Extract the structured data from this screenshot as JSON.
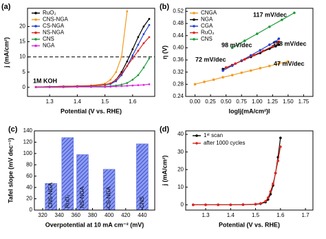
{
  "chart_data": [
    {
      "type": "line",
      "panel_label": "(a)",
      "x_label": "Potential (V vs. RHE)",
      "y_label": "j (mA/cm²)",
      "x": [
        1.25,
        1.3,
        1.35,
        1.4,
        1.45,
        1.5,
        1.52,
        1.54,
        1.56,
        1.58,
        1.6,
        1.62,
        1.64,
        1.66
      ],
      "series": [
        {
          "name": "RuO₂",
          "color": "#000000",
          "values": [
            0.1,
            0.2,
            0.3,
            0.4,
            0.5,
            0.8,
            1.2,
            2.5,
            5,
            8.5,
            12.5,
            16.5,
            20,
            22.5
          ]
        },
        {
          "name": "CNS-NGA",
          "color": "#f39a1e",
          "values": [
            0.1,
            0.2,
            0.3,
            0.4,
            0.6,
            1.2,
            2.5,
            5,
            10,
            25,
            null,
            null,
            null,
            null
          ]
        },
        {
          "name": "CS-NGA",
          "color": "#1f3fd6",
          "values": [
            0.1,
            0.2,
            0.3,
            0.4,
            0.5,
            0.8,
            1.1,
            2,
            4,
            7,
            10.5,
            14,
            17.5,
            20.5
          ]
        },
        {
          "name": "NS-NGA",
          "color": "#e0241b",
          "values": [
            0.1,
            0.2,
            0.3,
            0.4,
            0.5,
            0.9,
            1.3,
            2.5,
            4.5,
            7,
            9.5,
            12,
            14.5,
            16.5
          ]
        },
        {
          "name": "CNS",
          "color": "#1f9a3a",
          "values": [
            0,
            0.1,
            0.1,
            0.2,
            0.2,
            0.3,
            0.4,
            0.6,
            0.9,
            1.4,
            2.5,
            4,
            6.5,
            9.5
          ]
        },
        {
          "name": "NGA",
          "color": "#e020e0",
          "values": [
            0,
            0,
            0,
            0.1,
            0.1,
            0.1,
            0.2,
            0.3,
            0.4,
            0.5,
            0.6,
            0.7,
            0.8,
            1
          ]
        }
      ],
      "reference_line": 10,
      "annotations": [
        {
          "text": "1M KOH"
        }
      ],
      "xlim": [
        1.22,
        1.68
      ],
      "xticks": [
        1.3,
        1.4,
        1.5,
        1.6
      ],
      "ylim": [
        -3,
        26
      ],
      "yticks": [
        0,
        5,
        10,
        15,
        20
      ]
    },
    {
      "type": "line",
      "markers": true,
      "panel_label": "(b)",
      "x_label": "logIj(mA/cm²)I",
      "y_label": "η (V)",
      "series": [
        {
          "name": "CNGA",
          "color": "#f39a1e",
          "x": [
            0,
            0.15,
            0.3,
            0.45,
            0.6,
            0.75,
            0.9,
            1.05,
            1.2,
            1.35,
            1.5
          ],
          "values": [
            0.28,
            0.288,
            0.295,
            0.303,
            0.31,
            0.318,
            0.325,
            0.333,
            0.34,
            0.348,
            0.355
          ]
        },
        {
          "name": "NGA",
          "color": "#000000",
          "x": [
            0.45,
            0.6,
            0.75,
            0.9,
            1.05,
            1.2,
            1.3,
            1.35
          ],
          "values": [
            0.33,
            0.343,
            0.357,
            0.37,
            0.383,
            0.397,
            0.405,
            0.41
          ]
        },
        {
          "name": "CGA",
          "color": "#1f3fd6",
          "x": [
            0.45,
            0.6,
            0.75,
            0.9,
            1.05,
            1.2,
            1.3,
            1.35
          ],
          "values": [
            0.325,
            0.341,
            0.358,
            0.375,
            0.392,
            0.41,
            0.42,
            0.43
          ]
        },
        {
          "name": "RuO₂",
          "color": "#e0241b",
          "x": [
            0.5,
            0.65,
            0.8,
            0.95,
            1.1,
            1.25,
            1.35
          ],
          "values": [
            0.335,
            0.348,
            0.362,
            0.376,
            0.39,
            0.405,
            0.42
          ]
        },
        {
          "name": "CNS",
          "color": "#1f9a3a",
          "x": [
            0.6,
            0.8,
            1.0,
            1.2,
            1.4,
            1.6
          ],
          "values": [
            0.4,
            0.423,
            0.446,
            0.469,
            0.492,
            0.515
          ]
        }
      ],
      "annotations": [
        {
          "text": "117 mV/dec",
          "color": "#1f9a3a"
        },
        {
          "text": "98 mV/dec",
          "color": "#e0241b"
        },
        {
          "text": "128 mV/dec",
          "color": "#000000"
        },
        {
          "text": "72 mV/dec",
          "color": "#1f3fd6"
        },
        {
          "text": "47 mV/dec",
          "color": "#f39a1e"
        }
      ],
      "xlim": [
        -0.15,
        1.9
      ],
      "xticks": [
        {
          "value": 0,
          "label": "0.00"
        },
        0.25,
        {
          "value": 0.5,
          "label": "0.50"
        },
        0.75,
        {
          "value": 1,
          "label": "1.00"
        },
        1.25,
        {
          "value": 1.5,
          "label": "1.50"
        },
        1.75
      ],
      "ylim": [
        0.24,
        0.53
      ],
      "yticks": [
        0.24,
        0.28,
        0.32,
        0.36,
        {
          "value": 0.4,
          "label": "0.40"
        },
        0.44,
        0.48,
        0.52
      ]
    },
    {
      "type": "bar",
      "panel_label": "(c)",
      "x_label": "Overpotential at 10 mA cm⁻² (mV)",
      "y_label": "Tafel slope (mV dec⁻¹)",
      "categories": [
        "CNS-NGA",
        "RuO₂",
        "NS-NGA",
        "CS-NGA",
        "CNS"
      ],
      "x": [
        330,
        350,
        368,
        400,
        440
      ],
      "values": [
        47,
        128,
        98,
        72,
        117
      ],
      "color": "#5a6fe0",
      "xlim": [
        310,
        455
      ],
      "xticks": [
        320,
        340,
        360,
        380,
        400,
        420,
        440
      ],
      "ylim": [
        0,
        140
      ],
      "yticks": [
        0,
        20,
        40,
        60,
        80,
        100,
        120,
        140
      ]
    },
    {
      "type": "line",
      "markers": true,
      "panel_label": "(d)",
      "x_label": "Potential (V vs. RHE)",
      "y_label": "j (mA/cm²)",
      "x": [
        1.25,
        1.3,
        1.35,
        1.4,
        1.45,
        1.5,
        1.52,
        1.54,
        1.55,
        1.56,
        1.57,
        1.58,
        1.59,
        1.6
      ],
      "series": [
        {
          "name": "1ˢᵗ scan",
          "color": "#000000",
          "values": [
            0,
            0,
            0,
            0,
            0.1,
            0.3,
            0.6,
            1.5,
            3,
            6,
            11,
            18,
            27,
            38
          ]
        },
        {
          "name": "after 1000  cycles",
          "color": "#e0241b",
          "values": [
            0,
            0,
            0,
            0,
            0.1,
            0.4,
            0.8,
            2,
            4,
            7.5,
            12,
            18,
            25,
            33
          ]
        }
      ],
      "xlim": [
        1.22,
        1.73
      ],
      "xticks": [
        1.3,
        1.4,
        1.5,
        1.6,
        1.7
      ],
      "ylim": [
        -3,
        42
      ],
      "yticks": [
        0,
        10,
        20,
        30,
        40
      ]
    }
  ]
}
